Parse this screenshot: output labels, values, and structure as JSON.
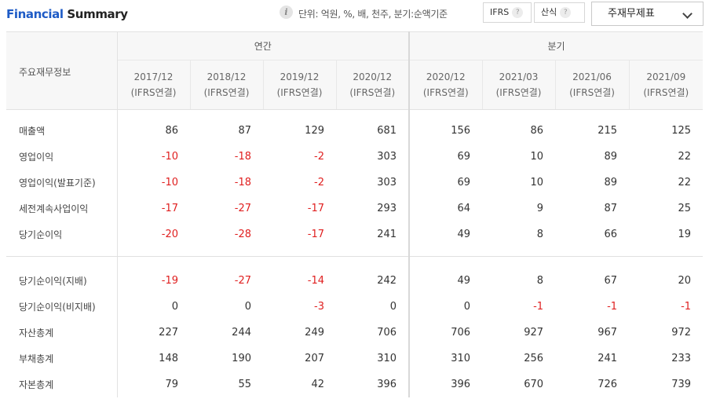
{
  "header": {
    "title_part1": "Financial",
    "title_part2": "Summary",
    "info_icon": "i",
    "unit_text": "단위: 억원, %, 배, 천주, 분기:순액기준",
    "ifrs_label": "IFRS",
    "calc_label": "산식",
    "help_glyph": "?",
    "dropdown_selected": "주재무제표"
  },
  "table": {
    "item_header": "주요재무정보",
    "group_annual": "연간",
    "group_quarter": "분기",
    "periods": [
      {
        "date": "2017/12",
        "basis": "(IFRS연결)"
      },
      {
        "date": "2018/12",
        "basis": "(IFRS연결)"
      },
      {
        "date": "2019/12",
        "basis": "(IFRS연결)"
      },
      {
        "date": "2020/12",
        "basis": "(IFRS연결)"
      },
      {
        "date": "2020/12",
        "basis": "(IFRS연결)"
      },
      {
        "date": "2021/03",
        "basis": "(IFRS연결)"
      },
      {
        "date": "2021/06",
        "basis": "(IFRS연결)"
      },
      {
        "date": "2021/09",
        "basis": "(IFRS연결)"
      }
    ],
    "rows": [
      {
        "label": "매출액",
        "values": [
          "86",
          "87",
          "129",
          "681",
          "156",
          "86",
          "215",
          "125"
        ]
      },
      {
        "label": "영업이익",
        "values": [
          "-10",
          "-18",
          "-2",
          "303",
          "69",
          "10",
          "89",
          "22"
        ]
      },
      {
        "label": "영업이익(발표기준)",
        "values": [
          "-10",
          "-18",
          "-2",
          "303",
          "69",
          "10",
          "89",
          "22"
        ]
      },
      {
        "label": "세전계속사업이익",
        "values": [
          "-17",
          "-27",
          "-17",
          "293",
          "64",
          "9",
          "87",
          "25"
        ]
      },
      {
        "label": "당기순이익",
        "values": [
          "-20",
          "-28",
          "-17",
          "241",
          "49",
          "8",
          "66",
          "19"
        ]
      },
      {
        "label": "당기순이익(지배)",
        "values": [
          "-19",
          "-27",
          "-14",
          "242",
          "49",
          "8",
          "67",
          "20"
        ]
      },
      {
        "label": "당기순이익(비지배)",
        "values": [
          "0",
          "0",
          "-3",
          "0",
          "0",
          "-1",
          "-1",
          "-1"
        ]
      },
      {
        "label": "자산총계",
        "values": [
          "227",
          "244",
          "249",
          "706",
          "706",
          "927",
          "967",
          "972"
        ]
      },
      {
        "label": "부채총계",
        "values": [
          "148",
          "190",
          "207",
          "310",
          "310",
          "256",
          "241",
          "233"
        ]
      },
      {
        "label": "자본총계",
        "values": [
          "79",
          "55",
          "42",
          "396",
          "396",
          "670",
          "726",
          "739"
        ]
      }
    ]
  },
  "colors": {
    "title_accent": "#1e5bc6",
    "negative": "#e02020",
    "header_bg": "#f7f7f7"
  }
}
